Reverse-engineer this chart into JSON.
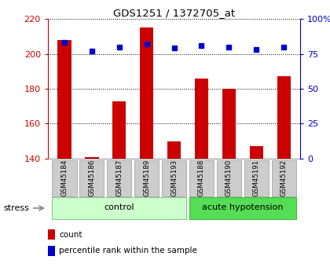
{
  "title": "GDS1251 / 1372705_at",
  "samples": [
    "GSM45184",
    "GSM45186",
    "GSM45187",
    "GSM45189",
    "GSM45193",
    "GSM45188",
    "GSM45190",
    "GSM45191",
    "GSM45192"
  ],
  "counts": [
    208,
    141,
    173,
    215,
    150,
    186,
    180,
    147,
    187
  ],
  "percentiles": [
    83,
    77,
    80,
    82,
    79,
    81,
    80,
    78,
    80
  ],
  "ylim_left": [
    140,
    220
  ],
  "ylim_right": [
    0,
    100
  ],
  "yticks_left": [
    140,
    160,
    180,
    200,
    220
  ],
  "yticks_right": [
    0,
    25,
    50,
    75,
    100
  ],
  "bar_color": "#cc0000",
  "dot_color": "#0000cc",
  "bar_width": 0.5,
  "control_color": "#ccffcc",
  "acute_color": "#55dd55",
  "label_bg_color": "#cccccc",
  "left_axis_color": "#cc0000",
  "right_axis_color": "#0000cc",
  "legend_count_label": "count",
  "legend_pct_label": "percentile rank within the sample",
  "control_label": "control",
  "acute_label": "acute hypotension",
  "stress_label": "stress",
  "n_control": 5,
  "n_acute": 4
}
